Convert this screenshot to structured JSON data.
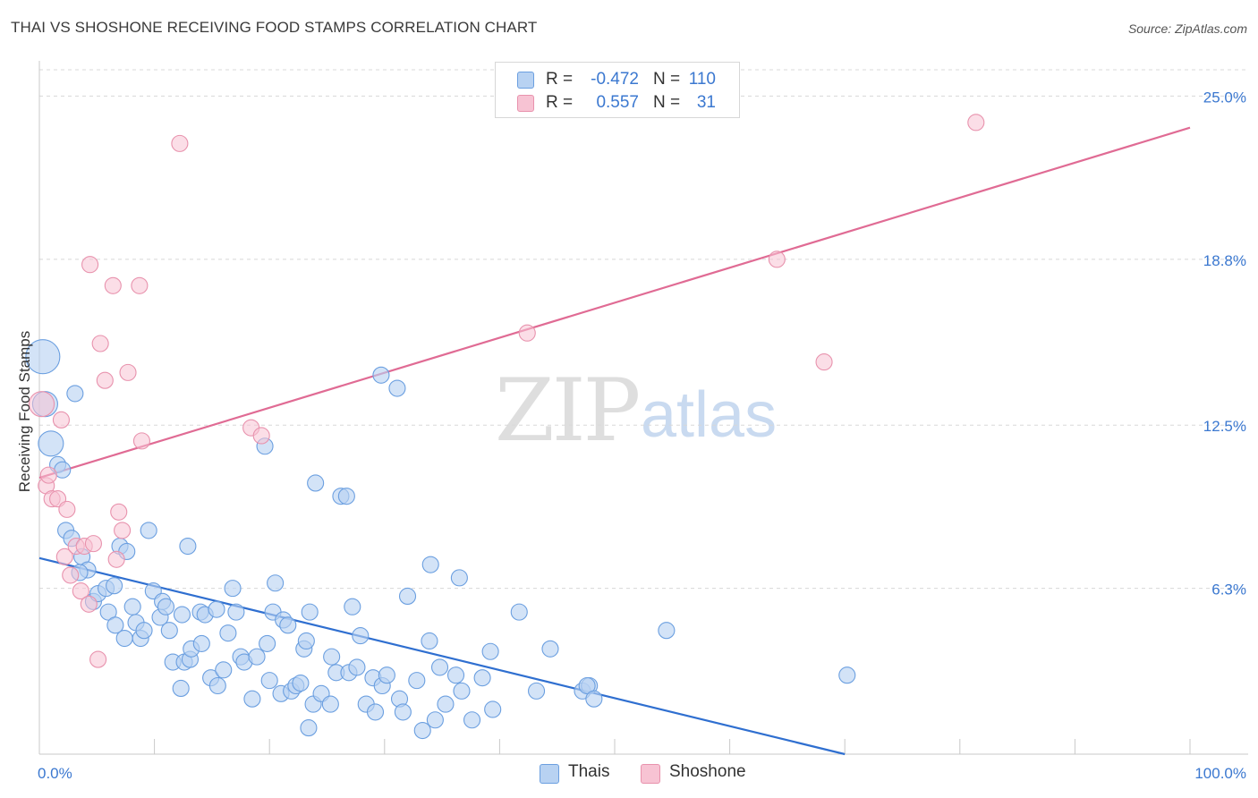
{
  "title": "THAI VS SHOSHONE RECEIVING FOOD STAMPS CORRELATION CHART",
  "source": "Source: ZipAtlas.com",
  "watermark": {
    "zip": "ZIP",
    "atlas": "atlas"
  },
  "colors": {
    "thais_fill": "#b8d2f2",
    "thais_stroke": "#6b9fe0",
    "thais_line": "#2f6fd0",
    "shoshone_fill": "#f7c3d3",
    "shoshone_stroke": "#e892ad",
    "shoshone_line": "#e06b94",
    "tick_label": "#3b78d0",
    "grid": "#d8d8d8"
  },
  "legend": {
    "rows": [
      {
        "r_label": "R =",
        "r_value": "-0.472",
        "n_label": "N =",
        "n_value": "110"
      },
      {
        "r_label": "R =",
        "r_value": "0.557",
        "n_label": "N =",
        "n_value": "31"
      }
    ]
  },
  "bottom_legend": {
    "thais": "Thais",
    "shoshone": "Shoshone"
  },
  "chart_data": {
    "type": "scatter",
    "title": "THAI VS SHOSHONE RECEIVING FOOD STAMPS CORRELATION CHART",
    "xlabel": "",
    "ylabel": "Receiving Food Stamps",
    "xlim": [
      0,
      100
    ],
    "ylim": [
      0,
      26
    ],
    "x_tick_labels": [
      "0.0%",
      "100.0%"
    ],
    "y_ticks": [
      6.3,
      12.5,
      18.8,
      25.0
    ],
    "y_tick_labels": [
      "6.3%",
      "12.5%",
      "18.8%",
      "25.0%"
    ],
    "grid": true,
    "series": [
      {
        "name": "Thais",
        "r": -0.472,
        "n": 110,
        "trend": {
          "x0": 0,
          "y0": 7.45,
          "x1": 70,
          "y1": 0.0
        },
        "points": [
          {
            "x": 0.3,
            "y": 15.1,
            "s": 3
          },
          {
            "x": 0.5,
            "y": 13.3,
            "s": 2
          },
          {
            "x": 3.1,
            "y": 13.7,
            "s": 1
          },
          {
            "x": 1.0,
            "y": 11.8,
            "s": 2
          },
          {
            "x": 1.6,
            "y": 11.0,
            "s": 1
          },
          {
            "x": 2.0,
            "y": 10.8,
            "s": 1
          },
          {
            "x": 2.3,
            "y": 8.5,
            "s": 1
          },
          {
            "x": 2.8,
            "y": 8.2,
            "s": 1
          },
          {
            "x": 3.7,
            "y": 7.5,
            "s": 1
          },
          {
            "x": 4.2,
            "y": 7.0,
            "s": 1
          },
          {
            "x": 3.5,
            "y": 6.9,
            "s": 1
          },
          {
            "x": 4.7,
            "y": 5.8,
            "s": 1
          },
          {
            "x": 5.1,
            "y": 6.1,
            "s": 1
          },
          {
            "x": 5.8,
            "y": 6.3,
            "s": 1
          },
          {
            "x": 6.0,
            "y": 5.4,
            "s": 1
          },
          {
            "x": 6.5,
            "y": 6.4,
            "s": 1
          },
          {
            "x": 7.0,
            "y": 7.9,
            "s": 1
          },
          {
            "x": 7.6,
            "y": 7.7,
            "s": 1
          },
          {
            "x": 9.5,
            "y": 8.5,
            "s": 1
          },
          {
            "x": 12.9,
            "y": 7.9,
            "s": 1
          },
          {
            "x": 6.6,
            "y": 4.9,
            "s": 1
          },
          {
            "x": 7.4,
            "y": 4.4,
            "s": 1
          },
          {
            "x": 8.1,
            "y": 5.6,
            "s": 1
          },
          {
            "x": 8.4,
            "y": 5.0,
            "s": 1
          },
          {
            "x": 8.8,
            "y": 4.4,
            "s": 1
          },
          {
            "x": 9.1,
            "y": 4.7,
            "s": 1
          },
          {
            "x": 9.9,
            "y": 6.2,
            "s": 1
          },
          {
            "x": 10.5,
            "y": 5.2,
            "s": 1
          },
          {
            "x": 10.7,
            "y": 5.8,
            "s": 1
          },
          {
            "x": 11.0,
            "y": 5.6,
            "s": 1
          },
          {
            "x": 11.3,
            "y": 4.7,
            "s": 1
          },
          {
            "x": 11.6,
            "y": 3.5,
            "s": 1
          },
          {
            "x": 12.3,
            "y": 2.5,
            "s": 1
          },
          {
            "x": 12.4,
            "y": 5.3,
            "s": 1
          },
          {
            "x": 12.6,
            "y": 3.5,
            "s": 1
          },
          {
            "x": 13.1,
            "y": 3.6,
            "s": 1
          },
          {
            "x": 13.2,
            "y": 4.0,
            "s": 1
          },
          {
            "x": 14.1,
            "y": 4.2,
            "s": 1
          },
          {
            "x": 14.0,
            "y": 5.4,
            "s": 1
          },
          {
            "x": 14.4,
            "y": 5.3,
            "s": 1
          },
          {
            "x": 14.9,
            "y": 2.9,
            "s": 1
          },
          {
            "x": 15.5,
            "y": 2.6,
            "s": 1
          },
          {
            "x": 15.4,
            "y": 5.5,
            "s": 1
          },
          {
            "x": 16.0,
            "y": 3.2,
            "s": 1
          },
          {
            "x": 16.4,
            "y": 4.6,
            "s": 1
          },
          {
            "x": 16.8,
            "y": 6.3,
            "s": 1
          },
          {
            "x": 17.1,
            "y": 5.4,
            "s": 1
          },
          {
            "x": 17.5,
            "y": 3.7,
            "s": 1
          },
          {
            "x": 17.8,
            "y": 3.5,
            "s": 1
          },
          {
            "x": 18.5,
            "y": 2.1,
            "s": 1
          },
          {
            "x": 18.9,
            "y": 3.7,
            "s": 1
          },
          {
            "x": 19.6,
            "y": 11.7,
            "s": 1
          },
          {
            "x": 19.8,
            "y": 4.2,
            "s": 1
          },
          {
            "x": 20.0,
            "y": 2.8,
            "s": 1
          },
          {
            "x": 20.3,
            "y": 5.4,
            "s": 1
          },
          {
            "x": 20.5,
            "y": 6.5,
            "s": 1
          },
          {
            "x": 21.0,
            "y": 2.3,
            "s": 1
          },
          {
            "x": 21.2,
            "y": 5.1,
            "s": 1
          },
          {
            "x": 21.6,
            "y": 4.9,
            "s": 1
          },
          {
            "x": 21.9,
            "y": 2.4,
            "s": 1
          },
          {
            "x": 22.3,
            "y": 2.6,
            "s": 1
          },
          {
            "x": 22.7,
            "y": 2.7,
            "s": 1
          },
          {
            "x": 23.0,
            "y": 4.0,
            "s": 1
          },
          {
            "x": 23.2,
            "y": 4.3,
            "s": 1
          },
          {
            "x": 23.5,
            "y": 5.4,
            "s": 1
          },
          {
            "x": 23.4,
            "y": 1.0,
            "s": 1
          },
          {
            "x": 23.8,
            "y": 1.9,
            "s": 1
          },
          {
            "x": 24.0,
            "y": 10.3,
            "s": 1
          },
          {
            "x": 24.5,
            "y": 2.3,
            "s": 1
          },
          {
            "x": 25.3,
            "y": 1.9,
            "s": 1
          },
          {
            "x": 25.4,
            "y": 3.7,
            "s": 1
          },
          {
            "x": 25.8,
            "y": 3.1,
            "s": 1
          },
          {
            "x": 26.2,
            "y": 9.8,
            "s": 1
          },
          {
            "x": 26.7,
            "y": 9.8,
            "s": 1
          },
          {
            "x": 26.9,
            "y": 3.1,
            "s": 1
          },
          {
            "x": 27.2,
            "y": 5.6,
            "s": 1
          },
          {
            "x": 27.6,
            "y": 3.3,
            "s": 1
          },
          {
            "x": 27.9,
            "y": 4.5,
            "s": 1
          },
          {
            "x": 28.4,
            "y": 1.9,
            "s": 1
          },
          {
            "x": 29.0,
            "y": 2.9,
            "s": 1
          },
          {
            "x": 29.2,
            "y": 1.6,
            "s": 1
          },
          {
            "x": 29.7,
            "y": 14.4,
            "s": 1
          },
          {
            "x": 29.8,
            "y": 2.6,
            "s": 1
          },
          {
            "x": 30.2,
            "y": 3.0,
            "s": 1
          },
          {
            "x": 31.1,
            "y": 13.9,
            "s": 1
          },
          {
            "x": 31.3,
            "y": 2.1,
            "s": 1
          },
          {
            "x": 31.6,
            "y": 1.6,
            "s": 1
          },
          {
            "x": 32.0,
            "y": 6.0,
            "s": 1
          },
          {
            "x": 32.8,
            "y": 2.8,
            "s": 1
          },
          {
            "x": 33.3,
            "y": 0.9,
            "s": 1
          },
          {
            "x": 33.9,
            "y": 4.3,
            "s": 1
          },
          {
            "x": 34.0,
            "y": 7.2,
            "s": 1
          },
          {
            "x": 34.4,
            "y": 1.3,
            "s": 1
          },
          {
            "x": 35.3,
            "y": 1.9,
            "s": 1
          },
          {
            "x": 34.8,
            "y": 3.3,
            "s": 1
          },
          {
            "x": 36.2,
            "y": 3.0,
            "s": 1
          },
          {
            "x": 36.5,
            "y": 6.7,
            "s": 1
          },
          {
            "x": 36.7,
            "y": 2.4,
            "s": 1
          },
          {
            "x": 37.6,
            "y": 1.3,
            "s": 1
          },
          {
            "x": 38.5,
            "y": 2.9,
            "s": 1
          },
          {
            "x": 39.2,
            "y": 3.9,
            "s": 1
          },
          {
            "x": 39.4,
            "y": 1.7,
            "s": 1
          },
          {
            "x": 41.7,
            "y": 5.4,
            "s": 1
          },
          {
            "x": 43.2,
            "y": 2.4,
            "s": 1
          },
          {
            "x": 44.4,
            "y": 4.0,
            "s": 1
          },
          {
            "x": 47.2,
            "y": 2.4,
            "s": 1
          },
          {
            "x": 47.8,
            "y": 2.6,
            "s": 1
          },
          {
            "x": 47.6,
            "y": 2.6,
            "s": 1
          },
          {
            "x": 48.2,
            "y": 2.1,
            "s": 1
          },
          {
            "x": 54.5,
            "y": 4.7,
            "s": 1
          },
          {
            "x": 70.2,
            "y": 3.0,
            "s": 1
          }
        ]
      },
      {
        "name": "Shoshone",
        "r": 0.557,
        "n": 31,
        "trend": {
          "x0": 0,
          "y0": 10.5,
          "x1": 100,
          "y1": 23.8
        },
        "points": [
          {
            "x": 0.2,
            "y": 13.3,
            "s": 2
          },
          {
            "x": 0.6,
            "y": 10.2,
            "s": 1
          },
          {
            "x": 0.8,
            "y": 10.6,
            "s": 1
          },
          {
            "x": 1.1,
            "y": 9.7,
            "s": 1
          },
          {
            "x": 1.6,
            "y": 9.7,
            "s": 1
          },
          {
            "x": 1.9,
            "y": 12.7,
            "s": 1
          },
          {
            "x": 2.2,
            "y": 7.5,
            "s": 1
          },
          {
            "x": 2.4,
            "y": 9.3,
            "s": 1
          },
          {
            "x": 2.7,
            "y": 6.8,
            "s": 1
          },
          {
            "x": 3.2,
            "y": 7.9,
            "s": 1
          },
          {
            "x": 3.6,
            "y": 6.2,
            "s": 1
          },
          {
            "x": 3.9,
            "y": 7.9,
            "s": 1
          },
          {
            "x": 4.3,
            "y": 5.7,
            "s": 1
          },
          {
            "x": 4.4,
            "y": 18.6,
            "s": 1
          },
          {
            "x": 4.7,
            "y": 8.0,
            "s": 1
          },
          {
            "x": 5.1,
            "y": 3.6,
            "s": 1
          },
          {
            "x": 5.3,
            "y": 15.6,
            "s": 1
          },
          {
            "x": 5.7,
            "y": 14.2,
            "s": 1
          },
          {
            "x": 6.4,
            "y": 17.8,
            "s": 1
          },
          {
            "x": 6.7,
            "y": 7.4,
            "s": 1
          },
          {
            "x": 6.9,
            "y": 9.2,
            "s": 1
          },
          {
            "x": 7.2,
            "y": 8.5,
            "s": 1
          },
          {
            "x": 7.7,
            "y": 14.5,
            "s": 1
          },
          {
            "x": 8.7,
            "y": 17.8,
            "s": 1
          },
          {
            "x": 8.9,
            "y": 11.9,
            "s": 1
          },
          {
            "x": 12.2,
            "y": 23.2,
            "s": 1
          },
          {
            "x": 18.4,
            "y": 12.4,
            "s": 1
          },
          {
            "x": 19.3,
            "y": 12.1,
            "s": 1
          },
          {
            "x": 42.4,
            "y": 16.0,
            "s": 1
          },
          {
            "x": 64.1,
            "y": 18.8,
            "s": 1
          },
          {
            "x": 68.2,
            "y": 14.9,
            "s": 1
          },
          {
            "x": 81.4,
            "y": 24.0,
            "s": 1
          }
        ]
      }
    ]
  }
}
